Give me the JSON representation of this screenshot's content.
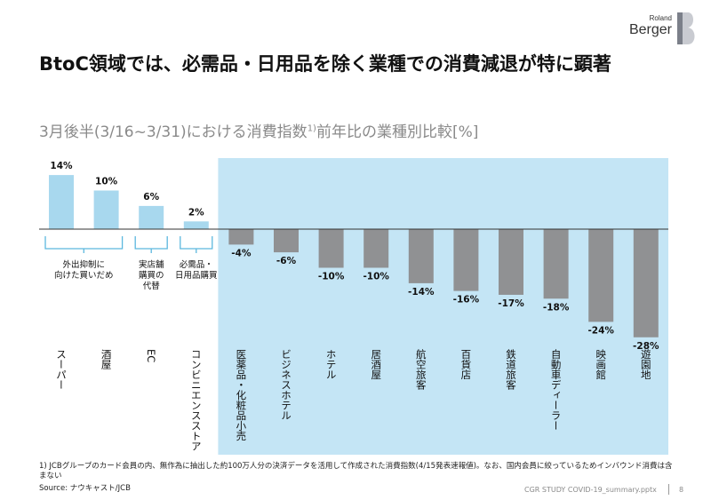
{
  "logo": {
    "small": "Roland",
    "big": "Berger"
  },
  "title": "BtoC領域では、必需品・日用品を除く業種での消費減退が特に顕著",
  "subtitle": {
    "main": "3月後半(3/16~3/31)における消費指数",
    "sup": "1)",
    "rest": "前年比の業種別比較[%]"
  },
  "chart_data": {
    "type": "bar",
    "categories": [
      "スーパー",
      "酒屋",
      "EC",
      "コンビニエンスストア",
      "医薬品・化粧品小売",
      "ビジネスホテル",
      "ホテル",
      "居酒屋",
      "航空旅客",
      "百貨店",
      "鉄道旅客",
      "自動車ディーラー",
      "映画館",
      "遊園地"
    ],
    "values": [
      14,
      10,
      6,
      2,
      -4,
      -6,
      -10,
      -10,
      -14,
      -16,
      -17,
      -18,
      -24,
      -28
    ],
    "data_labels": [
      "14%",
      "10%",
      "6%",
      "2%",
      "-4%",
      "-6%",
      "-10%",
      "-10%",
      "-14%",
      "-16%",
      "-17%",
      "-18%",
      "-24%",
      "-28%"
    ],
    "ylim": [
      -30,
      15
    ],
    "colors": {
      "positive": "#a8d8ee",
      "negative": "#909193",
      "highlight_bg": "#c4e5f5",
      "bracket": "#5cb8de"
    },
    "groups": [
      {
        "label": [
          "外出抑制に",
          "向けた買いだめ"
        ],
        "from": 0,
        "to": 1
      },
      {
        "label": [
          "実店舗",
          "購買の",
          "代替"
        ],
        "from": 2,
        "to": 2
      },
      {
        "label": [
          "必需品・",
          "日用品購買"
        ],
        "from": 3,
        "to": 3
      }
    ]
  },
  "footnote": "1) JCBグループのカード会員の内、無作為に抽出した約100万人分の決済データを活用して作成された消費指数(4/15発表速報値)。なお、国内会員に絞っているためインバウンド消費は含まない",
  "source": "Source: ナウキャスト/JCB",
  "footer": {
    "doc": "CGR STUDY COVID-19_summary.pptx",
    "page": "8"
  }
}
